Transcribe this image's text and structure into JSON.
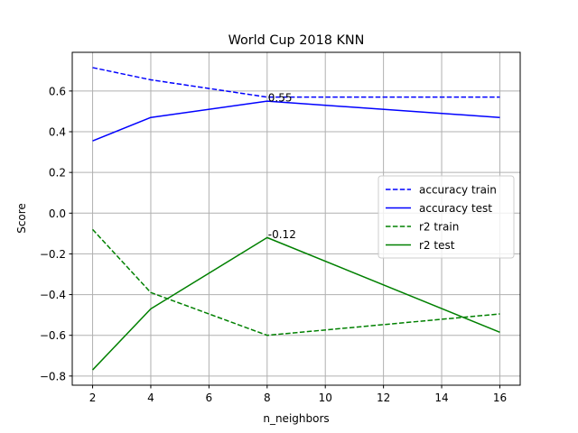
{
  "chart_data": {
    "type": "line",
    "title": "World Cup 2018 KNN",
    "xlabel": "n_neighbors",
    "ylabel": "Score",
    "xlim": [
      1.3,
      16.7
    ],
    "ylim": [
      -0.845,
      0.79
    ],
    "xticks": [
      2,
      4,
      6,
      8,
      10,
      12,
      14,
      16
    ],
    "yticks": [
      -0.8,
      -0.6,
      -0.4,
      -0.2,
      0.0,
      0.2,
      0.4,
      0.6
    ],
    "xtick_labels": [
      "2",
      "4",
      "6",
      "8",
      "10",
      "12",
      "14",
      "16"
    ],
    "ytick_labels": [
      "−0.8",
      "−0.6",
      "−0.4",
      "−0.2",
      "0.0",
      "0.2",
      "0.4",
      "0.6"
    ],
    "grid": true,
    "legend_position": "center-right",
    "series": [
      {
        "name": "accuracy train",
        "color": "#0000ff",
        "dashed": true,
        "x": [
          2,
          4,
          8,
          16
        ],
        "y": [
          0.715,
          0.655,
          0.57,
          0.57
        ]
      },
      {
        "name": "accuracy test",
        "color": "#0000ff",
        "dashed": false,
        "x": [
          2,
          4,
          8,
          16
        ],
        "y": [
          0.355,
          0.47,
          0.55,
          0.47
        ]
      },
      {
        "name": "r2 train",
        "color": "#008000",
        "dashed": true,
        "x": [
          2,
          4,
          8,
          16
        ],
        "y": [
          -0.08,
          -0.39,
          -0.6,
          -0.495
        ]
      },
      {
        "name": "r2 test",
        "color": "#008000",
        "dashed": false,
        "x": [
          2,
          4,
          8,
          16
        ],
        "y": [
          -0.77,
          -0.47,
          -0.12,
          -0.585
        ]
      }
    ],
    "annotations": [
      {
        "text": "0.55",
        "x": 8,
        "y": 0.55
      },
      {
        "text": "-0.12",
        "x": 8,
        "y": -0.12
      }
    ]
  }
}
